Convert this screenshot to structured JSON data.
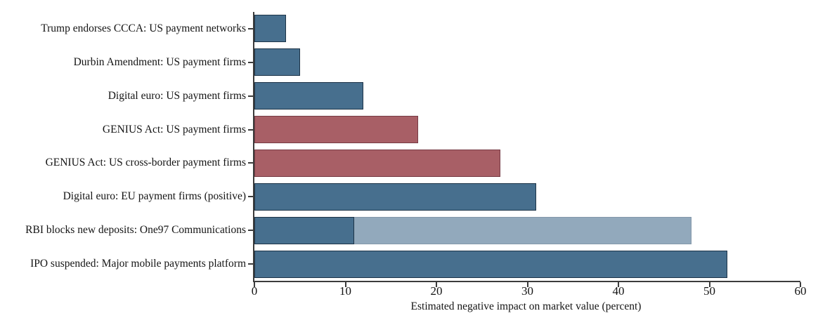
{
  "chart_data": {
    "type": "bar",
    "orientation": "horizontal",
    "title": "",
    "xlabel": "Estimated negative impact on market value (percent)",
    "ylabel": "",
    "xlim": [
      0,
      60
    ],
    "x_ticks": [
      0,
      10,
      20,
      30,
      40,
      50,
      60
    ],
    "grid": false,
    "legend": "none",
    "categories": [
      "Trump endorses CCCA: US payment networks",
      "Durbin Amendment: US payment firms",
      "Digital euro: US payment firms",
      "GENIUS Act: US payment firms",
      "GENIUS Act: US cross-border payment firms",
      "Digital euro: EU payment firms (positive)",
      "RBI blocks new deposits: One97 Communications",
      "IPO suspended: Major mobile payments platform"
    ],
    "values": [
      3.5,
      5,
      12,
      18,
      27,
      31,
      48,
      52
    ],
    "bars": [
      {
        "label": "Trump endorses CCCA: US payment networks",
        "value": 3.5,
        "fill": "#476f8e",
        "border": "#1d3448"
      },
      {
        "label": "Durbin Amendment: US payment firms",
        "value": 5,
        "fill": "#476f8e",
        "border": "#1d3448"
      },
      {
        "label": "Digital euro: US payment firms",
        "value": 12,
        "fill": "#476f8e",
        "border": "#1d3448"
      },
      {
        "label": "GENIUS Act: US payment firms",
        "value": 18,
        "fill": "#a85f66",
        "border": "#763b45"
      },
      {
        "label": "GENIUS Act: US cross-border payment firms",
        "value": 27,
        "fill": "#a85f66",
        "border": "#763b45"
      },
      {
        "label": "Digital euro: EU payment firms (positive)",
        "value": 31,
        "fill": "#476f8e",
        "border": "#1d3448"
      },
      {
        "label": "RBI blocks new deposits: One97 Communications",
        "value": 48,
        "fill": "#92a9bc",
        "border": "#8498aa",
        "overlay": {
          "value": 11,
          "fill": "#476f8e",
          "border": "#1d3448"
        }
      },
      {
        "label": "IPO suspended: Major mobile payments platform",
        "value": 52,
        "fill": "#476f8e",
        "border": "#1d3448"
      }
    ],
    "colors": {
      "dark_blue": "#476f8e",
      "red": "#a85f66",
      "light_blue": "#92a9bc",
      "axis": "#3c3c3c",
      "text": "#141414"
    }
  }
}
